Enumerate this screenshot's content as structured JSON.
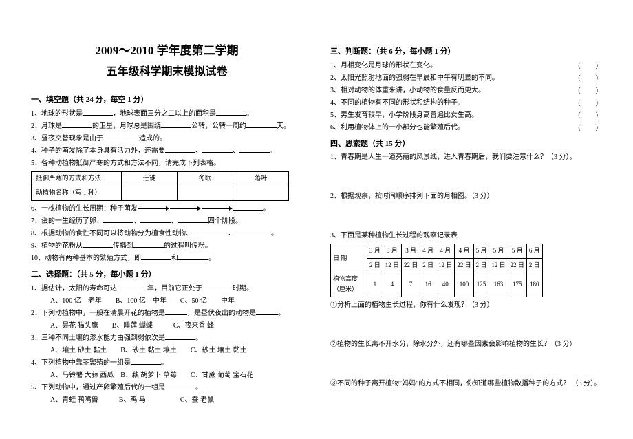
{
  "header": {
    "line1": "2009～2010 学年度第二学期",
    "line2": "五年级科学期末模拟试卷"
  },
  "sec1": {
    "title": "一、填空题（共 24 分，每空 1 分）",
    "q1": "1、地球的形状是",
    "q1b": "，地球表面三分之二以上的面积是",
    "q1c": "。",
    "q2": "2、月球是",
    "q2b": "的卫星，月球总是围绕",
    "q2c": "公转，公转一周约",
    "q2d": "天。",
    "q3": "3、昼夜交替现象是由于",
    "q3b": "造成的。",
    "q4": "4、种子的萌发除了本身具有活力外，还需要",
    "q4b": "、",
    "q4c": "、",
    "q4d": "。",
    "q5": "5、各种动植物抵御严寒的方式和方法不同，请完成下列表格。",
    "q6": "6、一株植物的生长周期：种子萌发",
    "q7a": "7、蛋的一生经历了卵、",
    "q7b": "、",
    "q7c": "、",
    "q7d": "四个阶段。",
    "q8": "8、根据动物的食性不同可以将动物分为植食性动物、",
    "q8b": "、",
    "q8c": "。",
    "q9": "9、植物的花粉从",
    "q9b": "传播到",
    "q9c": "的过程叫传粉。",
    "q10": "10、动物有两种基本的繁殖方式，即",
    "q10b": "和",
    "q10c": "。",
    "table1": {
      "r1c1": "抵御严寒的方式和方法",
      "r1c2": "迁徙",
      "r1c3": "冬眠",
      "r1c4": "落叶",
      "r2c1": "动植物名称（写 1 种）"
    }
  },
  "sec2": {
    "title": "二、选择题：（共 5 分，每小题 1 分）",
    "q1": "1、据估计，太阳的寿命可达",
    "q1b": "年，目前它正处于",
    "q1c": "时期。",
    "q1opts": "A、100 亿　老年　　B、100 亿　中年　　C、50 亿　　中年",
    "q2": "2、下列动植物中，一般在清晨开花的植物是",
    "q2b": "，是昼伏夜出的动物是",
    "q2c": "。",
    "q2opts": "A、昙花 猫头鹰　　B、睡莲 蝴蝶　　　C、夜来香 蜂",
    "q3": "3、三种不同土壤的渗水能力由强到弱依次是",
    "q3b": "。",
    "q3opts": "A、壤土 砂土 黏土　　B、砂土 黏土 壤土　　C、砂土 壤土 黏土",
    "q4": "4、下列植物中靠茎繁殖的一组是",
    "q4b": "。",
    "q4opts": "A、马铃薯 大蒜 西瓜　B、藕 胡萝卜 草莓　　C、甘蔗 葡萄 宝石花",
    "q5": "5、下列动物中，通过产卵繁殖后代的一组是",
    "q5b": "。",
    "q5opts": "A、青蛙 鸭嘴兽　　　B、鸡 马　　　　　C、蚕 老鼠"
  },
  "sec3": {
    "title": "三、判断题：（共 6 分，每小题 1 分）",
    "q1": "1、月相变化是月球的形状在变化。",
    "q2": "2、太阳光照射地面的强弱在早晨和中午有明显的不同。",
    "q3": "3、相对动物的体重来讲，小动物的食量反而更大。",
    "q4": "4、不同的植物有不同的形状和结构的种子。",
    "q5": "5、男生发育较早，小学阶段身高普遍比女生高。",
    "q6": "6、利用植物体上的一小部分也能繁殖后代。"
  },
  "sec4": {
    "title": "四、思索题（共 15 分）",
    "q1": "1、青春期是人生一道亮丽的风景线，进入青春期后，我们要注意什么？（3 分）。",
    "q2": "2、根据观察，按时间顺序排列下面的月相图。（3 分）",
    "q3": "3、下面是某种植物生长过程的观察记录表",
    "q3a": "①分析上面的植物生长过程，你有什么发现？（3 分）",
    "q3b": "②植物的生长离不开水分，除水分外，还有哪些因素会影响植物的生长？（3 分）",
    "q3c": "③不同的种子离开植物\"妈妈\"的方式不相同，你知道哪些植物散播种子的方式？ （3 分）。",
    "table2": {
      "h0": "日 期",
      "h": [
        "3 月",
        "3 月",
        "3 月",
        "4 月",
        "4 月",
        "4 月",
        "5 月",
        "5 月",
        "5 月",
        "6 月"
      ],
      "hd": [
        "2 日",
        "12 日",
        "22 日",
        "2 日",
        "12 日",
        "22 日",
        "2 日",
        "12 日",
        "22 日",
        "2 日"
      ],
      "r0": "植物高度",
      "r0b": "（厘米）",
      "v": [
        "1",
        "4",
        "7",
        "16",
        "40",
        "100",
        "125",
        "163",
        "175",
        "180"
      ]
    }
  }
}
